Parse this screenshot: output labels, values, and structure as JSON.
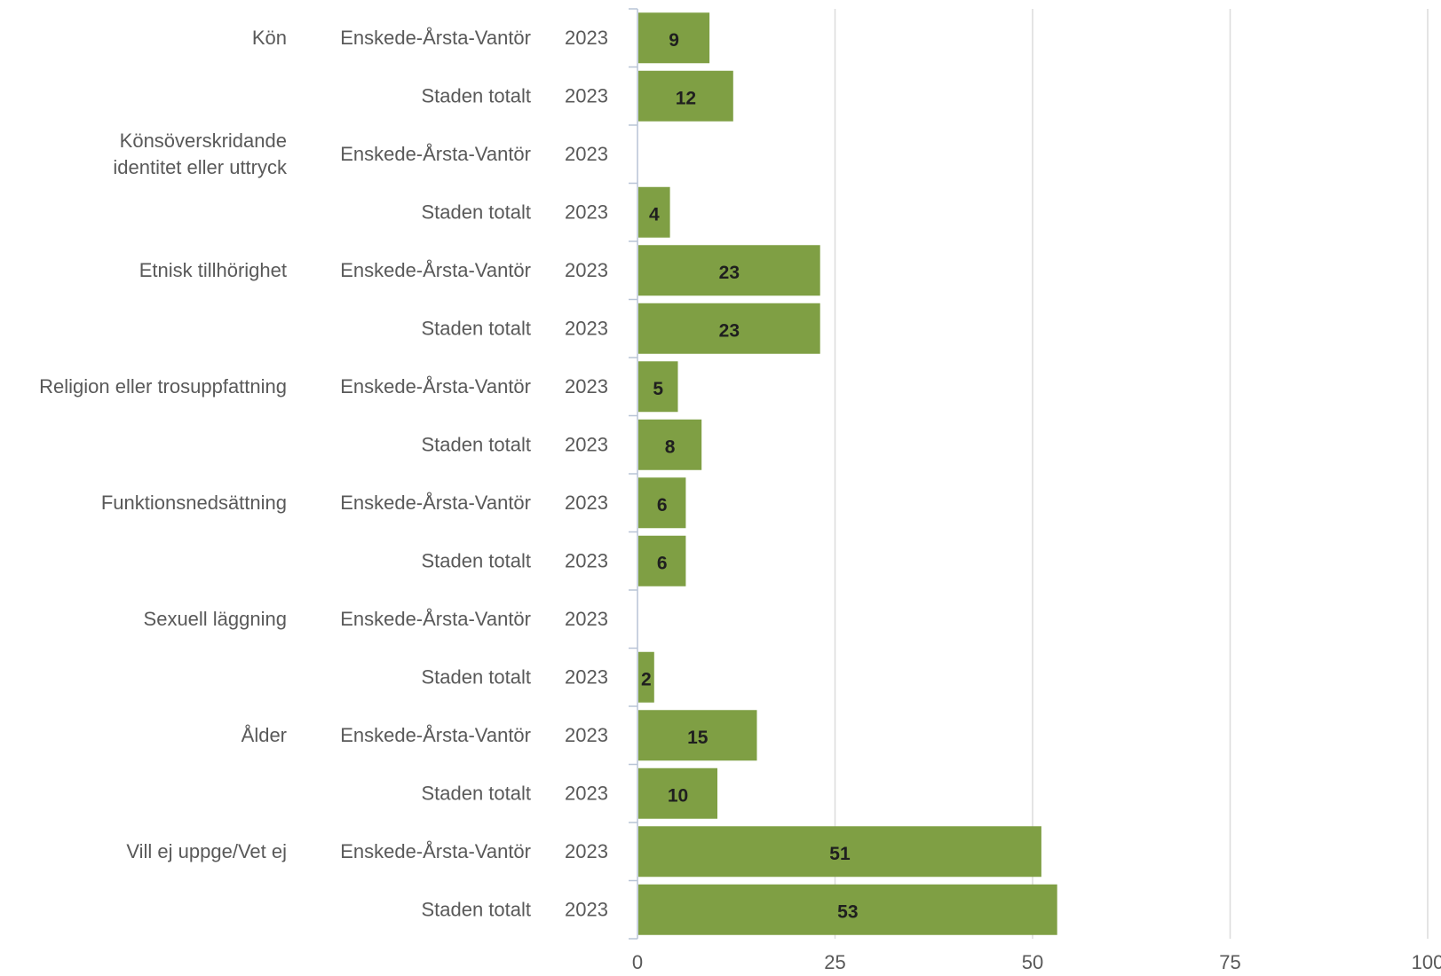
{
  "colors": {
    "bar": "#7f9f44",
    "grid": "#dcdcdc",
    "axis": "#b8c4d6",
    "text": "#595959",
    "value_text": "#1f1f1f"
  },
  "chart_data": {
    "type": "bar",
    "orientation": "horizontal",
    "title": "",
    "xlabel": "",
    "ylabel": "",
    "xlim": [
      0,
      100
    ],
    "x_ticks": [
      0,
      25,
      50,
      75,
      100
    ],
    "grid": true,
    "rows": [
      {
        "group": "Kön",
        "area": "Enskede-Årsta-Vantör",
        "year": "2023",
        "value": 9
      },
      {
        "group": "",
        "area": "Staden totalt",
        "year": "2023",
        "value": 12
      },
      {
        "group": "Könsöverskridande identitet eller uttryck",
        "group_lines": [
          "Könsöverskridande",
          "identitet eller uttryck"
        ],
        "area": "Enskede-Årsta-Vantör",
        "year": "2023",
        "value": null
      },
      {
        "group": "",
        "area": "Staden totalt",
        "year": "2023",
        "value": 4
      },
      {
        "group": "Etnisk tillhörighet",
        "area": "Enskede-Årsta-Vantör",
        "year": "2023",
        "value": 23
      },
      {
        "group": "",
        "area": "Staden totalt",
        "year": "2023",
        "value": 23
      },
      {
        "group": "Religion eller trosuppfattning",
        "area": "Enskede-Årsta-Vantör",
        "year": "2023",
        "value": 5
      },
      {
        "group": "",
        "area": "Staden totalt",
        "year": "2023",
        "value": 8
      },
      {
        "group": "Funktionsnedsättning",
        "area": "Enskede-Årsta-Vantör",
        "year": "2023",
        "value": 6
      },
      {
        "group": "",
        "area": "Staden totalt",
        "year": "2023",
        "value": 6
      },
      {
        "group": "Sexuell läggning",
        "area": "Enskede-Årsta-Vantör",
        "year": "2023",
        "value": null
      },
      {
        "group": "",
        "area": "Staden totalt",
        "year": "2023",
        "value": 2
      },
      {
        "group": "Ålder",
        "area": "Enskede-Årsta-Vantör",
        "year": "2023",
        "value": 15
      },
      {
        "group": "",
        "area": "Staden totalt",
        "year": "2023",
        "value": 10
      },
      {
        "group": "Vill ej uppge/Vet ej",
        "area": "Enskede-Årsta-Vantör",
        "year": "2023",
        "value": 51
      },
      {
        "group": "",
        "area": "Staden totalt",
        "year": "2023",
        "value": 53
      }
    ]
  }
}
